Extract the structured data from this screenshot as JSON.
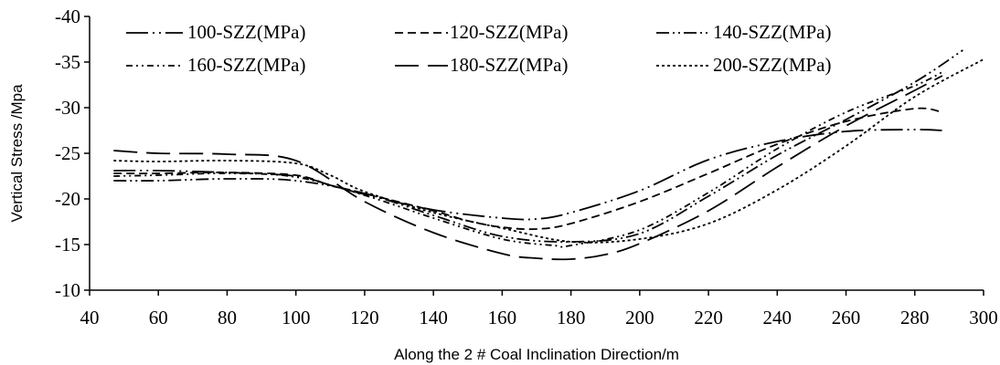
{
  "chart_data": {
    "type": "line",
    "title": "",
    "xlabel": "Along the 2 # Coal Inclination Direction/m",
    "ylabel": "Vertical Stress /Mpa",
    "xlim": [
      40,
      300
    ],
    "ylim": [
      -10,
      -40
    ],
    "y_axis_inverted": true,
    "x_ticks": [
      "40",
      "60",
      "80",
      "100",
      "120",
      "140",
      "160",
      "180",
      "200",
      "220",
      "240",
      "260",
      "280",
      "300"
    ],
    "y_ticks": [
      "-10",
      "-15",
      "-20",
      "-25",
      "-30",
      "-35",
      "-40"
    ],
    "grid": false,
    "legend_position": "top",
    "series": [
      {
        "name": "100-SZZ(MPa)",
        "dash": "long-dash-dot-dot",
        "x": [
          47,
          60,
          80,
          100,
          110,
          120,
          140,
          160,
          170,
          180,
          200,
          220,
          240,
          260,
          280,
          288
        ],
        "y": [
          -23.1,
          -23.1,
          -22.9,
          -22.5,
          -21.5,
          -20.5,
          -18.8,
          -17.9,
          -17.8,
          -18.5,
          -20.9,
          -24.3,
          -26.3,
          -27.4,
          -27.6,
          -27.5
        ]
      },
      {
        "name": "120-SZZ(MPa)",
        "dash": "dash",
        "x": [
          47,
          60,
          80,
          100,
          110,
          120,
          140,
          150,
          160,
          170,
          180,
          200,
          220,
          240,
          260,
          280,
          288
        ],
        "y": [
          -22.8,
          -22.8,
          -22.9,
          -22.6,
          -21.5,
          -20.6,
          -18.7,
          -17.6,
          -16.9,
          -16.7,
          -17.3,
          -19.7,
          -22.8,
          -26.0,
          -28.5,
          -29.9,
          -29.5
        ]
      },
      {
        "name": "140-SZZ(MPa)",
        "dash": "dash-dot-dot",
        "x": [
          47,
          60,
          80,
          100,
          120,
          140,
          160,
          180,
          200,
          220,
          240,
          260,
          280,
          294
        ],
        "y": [
          -22.0,
          -22.0,
          -22.2,
          -22.0,
          -20.6,
          -18.2,
          -15.9,
          -15.3,
          -16.2,
          -20.3,
          -24.8,
          -28.7,
          -32.8,
          -36.3
        ]
      },
      {
        "name": "160-SZZ(MPa)",
        "dash": "short-dash-dot-dot",
        "x": [
          47,
          60,
          80,
          100,
          120,
          140,
          160,
          175,
          180,
          200,
          220,
          240,
          260,
          280,
          288
        ],
        "y": [
          -22.5,
          -22.6,
          -22.8,
          -22.4,
          -20.4,
          -17.9,
          -15.6,
          -14.9,
          -14.9,
          -16.6,
          -20.7,
          -25.5,
          -29.5,
          -32.4,
          -33.9
        ]
      },
      {
        "name": "180-SZZ(MPa)",
        "dash": "long-dash",
        "x": [
          47,
          60,
          80,
          100,
          120,
          140,
          160,
          170,
          180,
          190,
          200,
          220,
          240,
          260,
          280,
          288
        ],
        "y": [
          -25.3,
          -25.0,
          -24.9,
          -24.2,
          -19.7,
          -16.3,
          -14.0,
          -13.5,
          -13.4,
          -13.9,
          -15.1,
          -18.7,
          -23.5,
          -28.0,
          -31.9,
          -33.5
        ]
      },
      {
        "name": "200-SZZ(MPa)",
        "dash": "dot",
        "x": [
          47,
          60,
          80,
          100,
          110,
          120,
          140,
          160,
          180,
          200,
          220,
          240,
          260,
          280,
          300
        ],
        "y": [
          -24.2,
          -24.1,
          -24.2,
          -23.9,
          -22.6,
          -20.8,
          -18.5,
          -16.8,
          -15.3,
          -15.6,
          -17.3,
          -21.0,
          -25.8,
          -31.2,
          -35.3
        ]
      }
    ]
  }
}
